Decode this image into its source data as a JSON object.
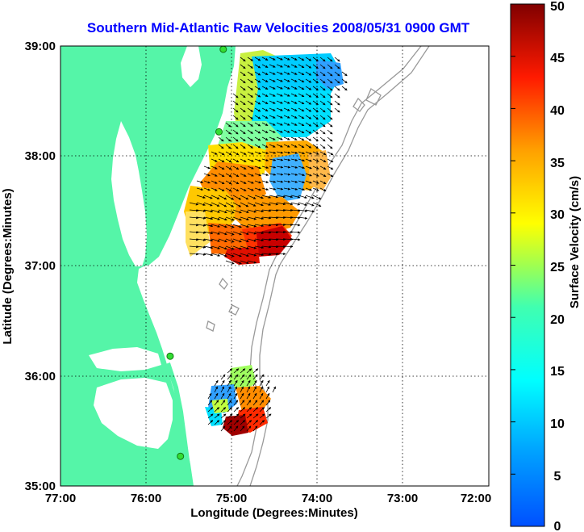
{
  "title": "Southern Mid-Atlantic Raw Velocities 2008/05/31 0900 GMT",
  "x_axis": {
    "label": "Longitude (Degrees:Minutes)",
    "ticks": [
      "77:00",
      "76:00",
      "75:00",
      "74:00",
      "73:00",
      "72:00"
    ],
    "range": [
      -77,
      -72
    ]
  },
  "y_axis": {
    "label": "Latitude (Degrees:Minutes)",
    "ticks": [
      "39:00",
      "38:00",
      "37:00",
      "36:00",
      "35:00"
    ],
    "range": [
      35,
      39
    ]
  },
  "colorbar": {
    "label": "Surface Velocity (cm/s)",
    "ticks": [
      "50",
      "45",
      "40",
      "35",
      "30",
      "25",
      "20",
      "15",
      "10",
      "5",
      "0"
    ],
    "range": [
      0,
      50
    ],
    "colormap": "jet"
  },
  "colors": {
    "land": "#55f5a8",
    "water": "#ffffff",
    "title": "#0000ff",
    "bathymetry": "#999999",
    "station": "#33dd33"
  },
  "grid": "dotted",
  "stations": [
    {
      "lon": -75.1,
      "lat": 38.97
    },
    {
      "lon": -75.15,
      "lat": 38.22
    },
    {
      "lon": -75.72,
      "lat": 36.18
    },
    {
      "lon": -75.6,
      "lat": 35.27
    }
  ]
}
